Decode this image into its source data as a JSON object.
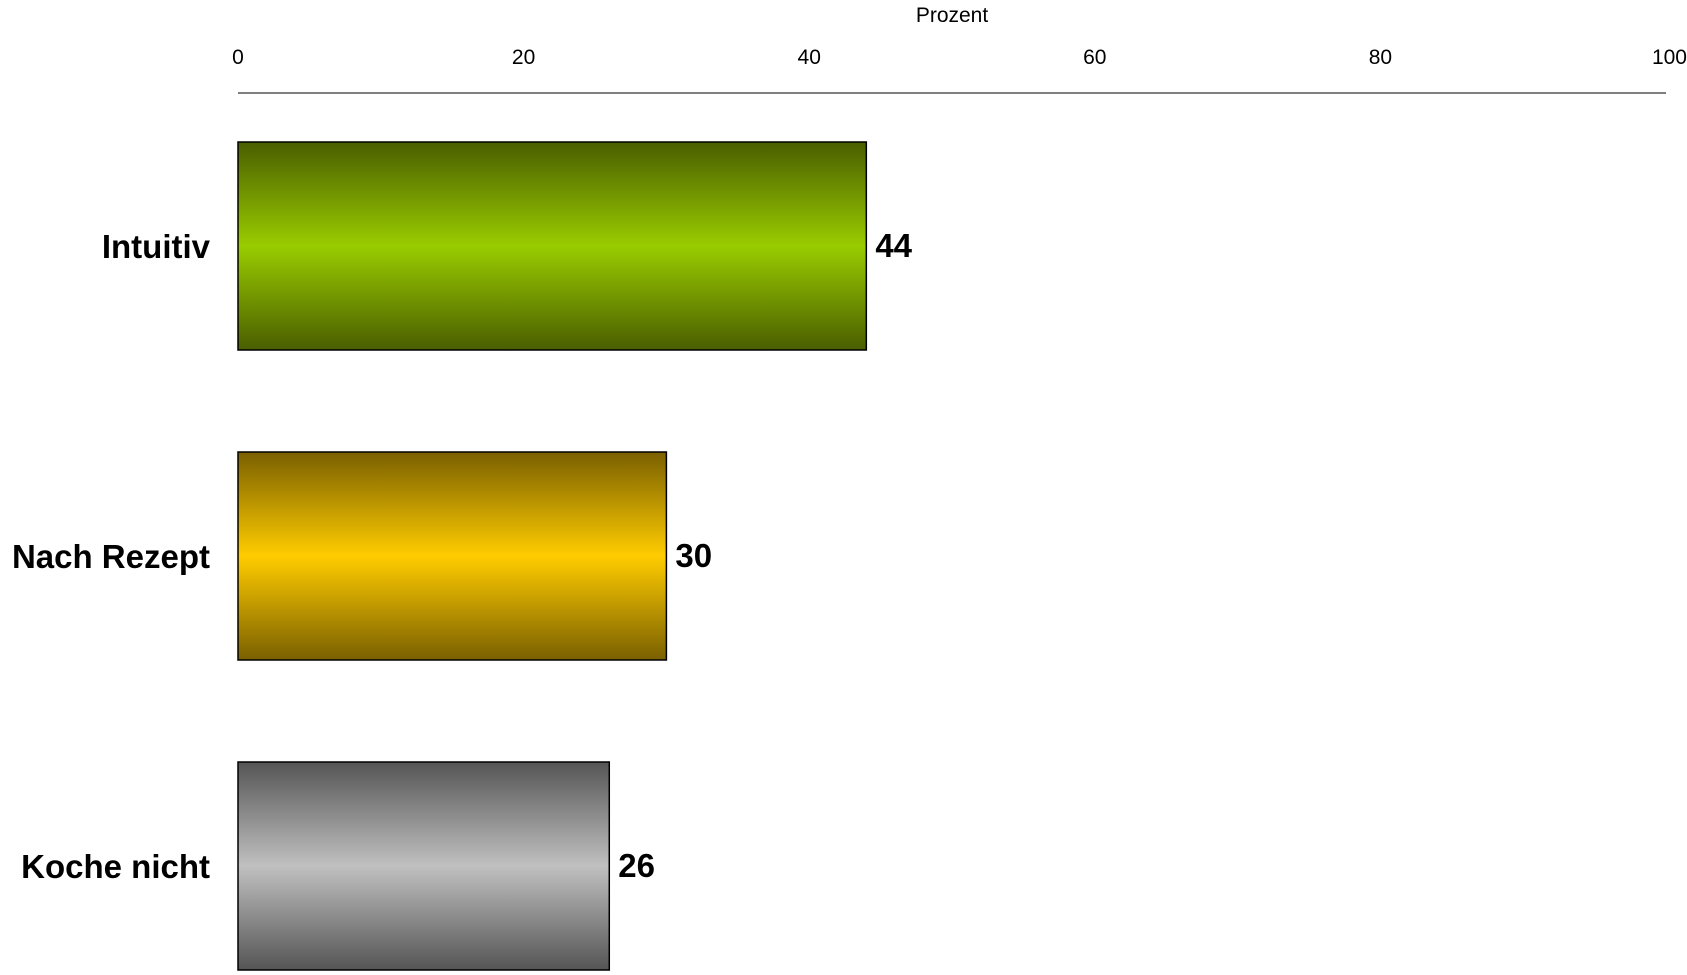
{
  "chart_data": {
    "type": "bar",
    "orientation": "horizontal",
    "title": "",
    "xlabel": "Prozent",
    "ylabel": "",
    "xlim": [
      0,
      100
    ],
    "ticks": [
      0,
      20,
      40,
      60,
      80,
      100
    ],
    "tick_labels": [
      "0",
      "20",
      "40",
      "60",
      "80",
      "100"
    ],
    "axis_position": "top",
    "grid": false,
    "legend": "none",
    "categories": [
      "Intuitiv",
      "Nach Rezept",
      "Koche nicht"
    ],
    "values": [
      44,
      30,
      26
    ],
    "value_labels": [
      "44",
      "30",
      "26"
    ],
    "colors": [
      {
        "dark": "#4a5e00",
        "light": "#99cc00"
      },
      {
        "dark": "#7a6000",
        "light": "#ffcc00"
      },
      {
        "dark": "#555555",
        "light": "#c0c0c0"
      }
    ]
  }
}
